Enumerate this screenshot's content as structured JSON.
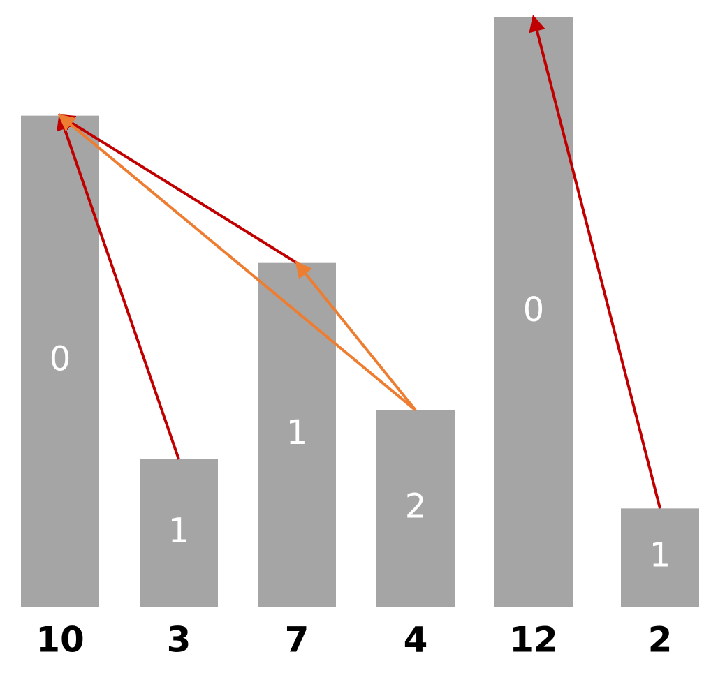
{
  "bars": [
    {
      "value": 10,
      "label": "0"
    },
    {
      "value": 3,
      "label": "1"
    },
    {
      "value": 7,
      "label": "1"
    },
    {
      "value": 4,
      "label": "2"
    },
    {
      "value": 12,
      "label": "0"
    },
    {
      "value": 2,
      "label": "1"
    }
  ]
}
